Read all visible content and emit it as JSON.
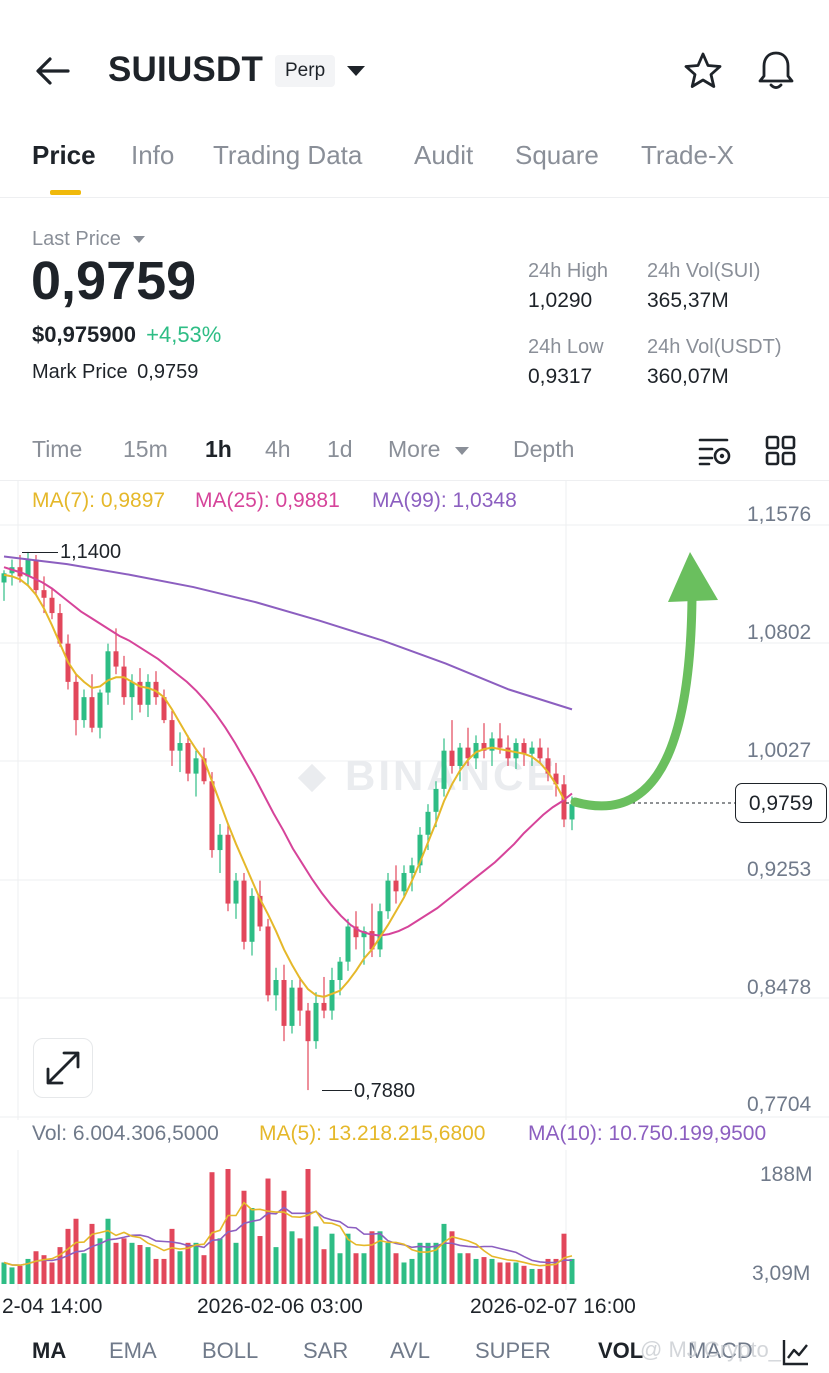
{
  "header": {
    "symbol": "SUIUSDT",
    "badge": "Perp"
  },
  "tabs": [
    "Price",
    "Info",
    "Trading Data",
    "Audit",
    "Square",
    "Trade-X"
  ],
  "price": {
    "last_price_label": "Last Price",
    "last_price": "0,9759",
    "usd_price": "$0,975900",
    "change": "+4,53%",
    "mark_label": "Mark Price",
    "mark_value": "0,9759",
    "stats": [
      {
        "label": "24h High",
        "value": "1,0290"
      },
      {
        "label": "24h Vol(SUI)",
        "value": "365,37M"
      },
      {
        "label": "24h Low",
        "value": "0,9317"
      },
      {
        "label": "24h Vol(USDT)",
        "value": "360,07M"
      }
    ]
  },
  "timeframes": [
    "Time",
    "15m",
    "1h",
    "4h",
    "1d",
    "More",
    "Depth"
  ],
  "ma_legend": [
    {
      "text": "MA(7): 0,9897",
      "color": "#e5b82a"
    },
    {
      "text": "MA(25): 0,9881",
      "color": "#d6449a"
    },
    {
      "text": "MA(99): 1,0348",
      "color": "#8c5fc0"
    }
  ],
  "chart": {
    "y_ticks": [
      "1,1576",
      "1,0802",
      "1,0027",
      "0,9253",
      "0,8478",
      "0,7704"
    ],
    "high_label": "1,1400",
    "low_label": "0,7880",
    "current_price": "0,9759",
    "watermark": "BINANCE"
  },
  "volume": {
    "legend": [
      {
        "text": "Vol: 6.004.306,5000",
        "color": "#707a8a"
      },
      {
        "text": "MA(5): 13.218.215,6800",
        "color": "#e5b82a"
      },
      {
        "text": "MA(10): 10.750.199,9500",
        "color": "#8c5fc0"
      }
    ],
    "y_ticks": [
      "188M",
      "3,09M"
    ],
    "x_ticks": [
      "2-04 14:00",
      "2026-02-06 03:00",
      "2026-02-07 16:00"
    ]
  },
  "bottom_tabs": [
    "MA",
    "EMA",
    "BOLL",
    "SAR",
    "AVL",
    "SUPER",
    "VOL",
    "MACD"
  ],
  "watermark_user": "@ MJ Crypto_",
  "colors": {
    "up": "#2ebd85",
    "down": "#e2475b",
    "accent": "#f0b90b"
  },
  "chart_data": {
    "type": "candlestick",
    "ylim": [
      0.7704,
      1.1576
    ],
    "ohlc": [
      [
        1.12,
        1.128,
        1.108,
        1.126
      ],
      [
        1.126,
        1.135,
        1.118,
        1.13
      ],
      [
        1.13,
        1.138,
        1.12,
        1.124
      ],
      [
        1.124,
        1.14,
        1.118,
        1.135
      ],
      [
        1.135,
        1.138,
        1.112,
        1.115
      ],
      [
        1.115,
        1.124,
        1.1,
        1.11
      ],
      [
        1.11,
        1.116,
        1.096,
        1.1
      ],
      [
        1.1,
        1.106,
        1.078,
        1.08
      ],
      [
        1.08,
        1.086,
        1.05,
        1.055
      ],
      [
        1.055,
        1.06,
        1.02,
        1.03
      ],
      [
        1.03,
        1.05,
        1.025,
        1.045
      ],
      [
        1.045,
        1.06,
        1.022,
        1.025
      ],
      [
        1.025,
        1.05,
        1.018,
        1.048
      ],
      [
        1.048,
        1.08,
        1.04,
        1.075
      ],
      [
        1.075,
        1.09,
        1.06,
        1.065
      ],
      [
        1.065,
        1.072,
        1.04,
        1.045
      ],
      [
        1.045,
        1.06,
        1.03,
        1.055
      ],
      [
        1.055,
        1.064,
        1.035,
        1.04
      ],
      [
        1.04,
        1.06,
        1.032,
        1.055
      ],
      [
        1.055,
        1.062,
        1.04,
        1.045
      ],
      [
        1.045,
        1.05,
        1.028,
        1.03
      ],
      [
        1.03,
        1.036,
        1.0,
        1.01
      ],
      [
        1.01,
        1.022,
        0.996,
        1.015
      ],
      [
        1.015,
        1.02,
        0.99,
        0.995
      ],
      [
        0.995,
        1.01,
        0.98,
        1.005
      ],
      [
        1.005,
        1.012,
        0.988,
        0.99
      ],
      [
        0.99,
        0.996,
        0.94,
        0.945
      ],
      [
        0.945,
        0.962,
        0.93,
        0.955
      ],
      [
        0.955,
        0.962,
        0.905,
        0.91
      ],
      [
        0.91,
        0.93,
        0.9,
        0.925
      ],
      [
        0.925,
        0.93,
        0.88,
        0.885
      ],
      [
        0.885,
        0.92,
        0.876,
        0.915
      ],
      [
        0.915,
        0.925,
        0.892,
        0.895
      ],
      [
        0.895,
        0.9,
        0.846,
        0.85
      ],
      [
        0.85,
        0.868,
        0.84,
        0.86
      ],
      [
        0.86,
        0.87,
        0.82,
        0.83
      ],
      [
        0.83,
        0.86,
        0.825,
        0.855
      ],
      [
        0.855,
        0.862,
        0.83,
        0.84
      ],
      [
        0.84,
        0.845,
        0.788,
        0.82
      ],
      [
        0.82,
        0.852,
        0.815,
        0.845
      ],
      [
        0.845,
        0.862,
        0.835,
        0.84
      ],
      [
        0.84,
        0.868,
        0.834,
        0.86
      ],
      [
        0.86,
        0.875,
        0.85,
        0.872
      ],
      [
        0.872,
        0.9,
        0.866,
        0.895
      ],
      [
        0.895,
        0.905,
        0.88,
        0.888
      ],
      [
        0.888,
        0.895,
        0.87,
        0.892
      ],
      [
        0.892,
        0.91,
        0.875,
        0.88
      ],
      [
        0.88,
        0.91,
        0.875,
        0.905
      ],
      [
        0.905,
        0.93,
        0.9,
        0.925
      ],
      [
        0.925,
        0.935,
        0.91,
        0.918
      ],
      [
        0.918,
        0.935,
        0.915,
        0.93
      ],
      [
        0.93,
        0.94,
        0.918,
        0.935
      ],
      [
        0.935,
        0.96,
        0.93,
        0.955
      ],
      [
        0.955,
        0.975,
        0.945,
        0.97
      ],
      [
        0.97,
        0.99,
        0.96,
        0.985
      ],
      [
        0.985,
        1.018,
        0.98,
        1.01
      ],
      [
        1.01,
        1.03,
        0.995,
        1.0
      ],
      [
        1.0,
        1.015,
        0.99,
        1.012
      ],
      [
        1.012,
        1.025,
        1.0,
        1.005
      ],
      [
        1.005,
        1.02,
        0.998,
        1.015
      ],
      [
        1.015,
        1.028,
        1.005,
        1.01
      ],
      [
        1.01,
        1.022,
        1.0,
        1.018
      ],
      [
        1.018,
        1.028,
        1.008,
        1.012
      ],
      [
        1.012,
        1.02,
        1.0,
        1.005
      ],
      [
        1.005,
        1.018,
        0.998,
        1.015
      ],
      [
        1.015,
        1.018,
        1.0,
        1.008
      ],
      [
        1.008,
        1.016,
        1.0,
        1.012
      ],
      [
        1.012,
        1.018,
        1.002,
        1.005
      ],
      [
        1.005,
        1.012,
        0.99,
        0.995
      ],
      [
        0.995,
        1.002,
        0.98,
        0.988
      ],
      [
        0.988,
        0.994,
        0.96,
        0.965
      ],
      [
        0.965,
        0.98,
        0.958,
        0.975
      ]
    ],
    "ma7": [
      1.125,
      1.124,
      1.122,
      1.118,
      1.112,
      1.103,
      1.092,
      1.08,
      1.068,
      1.06,
      1.055,
      1.051,
      1.052,
      1.056,
      1.058,
      1.058,
      1.055,
      1.052,
      1.051,
      1.049,
      1.045,
      1.037,
      1.028,
      1.019,
      1.011,
      1.004,
      0.99,
      0.976,
      0.962,
      0.949,
      0.937,
      0.925,
      0.913,
      0.903,
      0.892,
      0.88,
      0.87,
      0.861,
      0.854,
      0.85,
      0.849,
      0.851,
      0.853,
      0.859,
      0.866,
      0.874,
      0.88,
      0.888,
      0.896,
      0.905,
      0.914,
      0.925,
      0.937,
      0.95,
      0.963,
      0.977,
      0.988,
      0.997,
      1.004,
      1.009,
      1.011,
      1.012,
      1.011,
      1.01,
      1.009,
      1.008,
      1.006,
      1.002,
      0.996,
      0.988,
      0.978
    ],
    "ma25": [
      1.13,
      1.128,
      1.126,
      1.123,
      1.12,
      1.116,
      1.111,
      1.106,
      1.101,
      1.097,
      1.093,
      1.089,
      1.085,
      1.082,
      1.078,
      1.074,
      1.07,
      1.065,
      1.06,
      1.055,
      1.049,
      1.042,
      1.034,
      1.025,
      1.015,
      1.004,
      0.993,
      0.981,
      0.969,
      0.958,
      0.946,
      0.936,
      0.926,
      0.917,
      0.909,
      0.902,
      0.896,
      0.892,
      0.89,
      0.889,
      0.89,
      0.892,
      0.895,
      0.899,
      0.903,
      0.907,
      0.912,
      0.917,
      0.922,
      0.927,
      0.932,
      0.937,
      0.943,
      0.949,
      0.956,
      0.962,
      0.968,
      0.973,
      0.977,
      0.982
    ],
    "ma99": [
      1.137,
      1.132,
      1.125,
      1.117,
      1.107,
      1.095,
      1.082,
      1.067,
      1.05,
      1.037
    ]
  }
}
